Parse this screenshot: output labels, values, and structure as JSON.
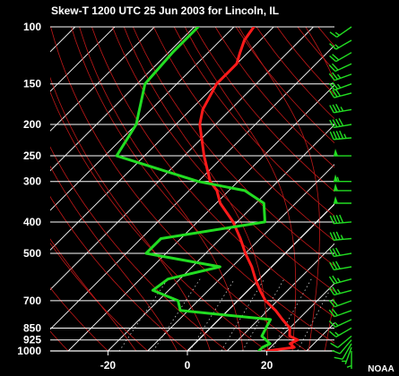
{
  "title": "Skew-T 1200 UTC  25 Jun 2003 for Lincoln, IL",
  "credit": "NOAA",
  "colors": {
    "background": "#000000",
    "isobar": "#ffffff",
    "isotherm": "#ffffff",
    "dry_adiabat": "#c01818",
    "moist_adiabat": "#c01818",
    "mixing_ratio": "#c8c8c8",
    "temperature": "#ff1a1a",
    "dewpoint": "#22dd22",
    "wind_barb": "#22dd22",
    "text": "#ffffff"
  },
  "chart_data": {
    "type": "line",
    "title": "Skew-T 1200 UTC  25 Jun 2003 for Lincoln, IL",
    "xlabel": "",
    "ylabel": "",
    "log_pressure_axis": true,
    "skewed_temperature_axis": true,
    "ylim": [
      1000,
      100
    ],
    "xlim": [
      -30,
      35
    ],
    "pressure_levels": [
      100,
      150,
      200,
      250,
      300,
      400,
      500,
      700,
      850,
      925,
      1000
    ],
    "temperature_ticks": [
      -20,
      0,
      20
    ],
    "series": [
      {
        "name": "",
        "kind": "temperature",
        "color": "#ff1a1a",
        "p": [
          1000,
          975,
          950,
          925,
          900,
          850,
          800,
          750,
          700,
          650,
          600,
          550,
          500,
          450,
          400,
          350,
          320,
          300,
          250,
          200,
          180,
          150,
          130,
          120,
          110,
          100
        ],
        "t": [
          20,
          26,
          24,
          25,
          22,
          20,
          16,
          12,
          7,
          3,
          -1,
          -5,
          -10,
          -15,
          -21,
          -29,
          -33,
          -37,
          -45,
          -54,
          -57,
          -60,
          -60,
          -62,
          -64,
          -65
        ]
      },
      {
        "name": "",
        "kind": "dewpoint",
        "color": "#22dd22",
        "p": [
          1000,
          975,
          950,
          925,
          900,
          850,
          800,
          750,
          700,
          650,
          600,
          550,
          500,
          450,
          400,
          350,
          320,
          300,
          250,
          200,
          150,
          120,
          100
        ],
        "t": [
          18,
          18,
          19,
          17,
          15,
          14,
          13,
          -12,
          -15,
          -24,
          -23,
          -13,
          -35,
          -35,
          -13,
          -18,
          -26,
          -40,
          -67,
          -70,
          -78,
          -79,
          -79
        ]
      }
    ],
    "wind_barbs": [
      {
        "p": 1000,
        "dir": 180,
        "kt": 5
      },
      {
        "p": 975,
        "dir": 200,
        "kt": 5
      },
      {
        "p": 950,
        "dir": 210,
        "kt": 10
      },
      {
        "p": 925,
        "dir": 220,
        "kt": 10
      },
      {
        "p": 900,
        "dir": 230,
        "kt": 10
      },
      {
        "p": 850,
        "dir": 240,
        "kt": 15
      },
      {
        "p": 800,
        "dir": 245,
        "kt": 15
      },
      {
        "p": 750,
        "dir": 250,
        "kt": 20
      },
      {
        "p": 700,
        "dir": 250,
        "kt": 20
      },
      {
        "p": 650,
        "dir": 255,
        "kt": 25
      },
      {
        "p": 600,
        "dir": 255,
        "kt": 25
      },
      {
        "p": 550,
        "dir": 260,
        "kt": 30
      },
      {
        "p": 500,
        "dir": 260,
        "kt": 30
      },
      {
        "p": 450,
        "dir": 265,
        "kt": 35
      },
      {
        "p": 400,
        "dir": 265,
        "kt": 40
      },
      {
        "p": 350,
        "dir": 270,
        "kt": 50
      },
      {
        "p": 320,
        "dir": 270,
        "kt": 50
      },
      {
        "p": 300,
        "dir": 270,
        "kt": 55
      },
      {
        "p": 250,
        "dir": 270,
        "kt": 50
      },
      {
        "p": 220,
        "dir": 265,
        "kt": 45
      },
      {
        "p": 200,
        "dir": 260,
        "kt": 40
      },
      {
        "p": 180,
        "dir": 260,
        "kt": 35
      },
      {
        "p": 160,
        "dir": 255,
        "kt": 30
      },
      {
        "p": 150,
        "dir": 250,
        "kt": 25
      },
      {
        "p": 140,
        "dir": 250,
        "kt": 25
      },
      {
        "p": 130,
        "dir": 245,
        "kt": 20
      },
      {
        "p": 120,
        "dir": 240,
        "kt": 20
      },
      {
        "p": 110,
        "dir": 240,
        "kt": 15
      },
      {
        "p": 100,
        "dir": 235,
        "kt": 15
      }
    ]
  }
}
